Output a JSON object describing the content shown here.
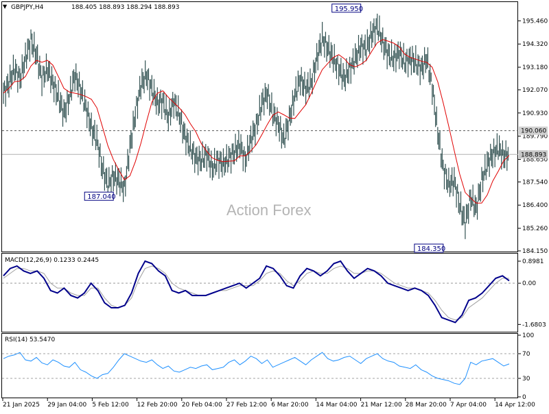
{
  "chart_data": [
    {
      "type": "candlestick",
      "title": "GBPJPY,H4",
      "ohlc_label": "188.405 188.893 188.294 188.893",
      "watermark": "Action Forex",
      "y_ticks": [
        "195.460",
        "194.320",
        "193.180",
        "192.070",
        "190.930",
        "189.790",
        "188.650",
        "187.540",
        "186.400",
        "185.260",
        "184.150"
      ],
      "y_tick_values": [
        195.46,
        194.32,
        193.18,
        192.07,
        190.93,
        189.79,
        188.65,
        187.54,
        186.4,
        185.26,
        184.15
      ],
      "ylim": [
        184.15,
        196.35
      ],
      "current_price": "188.893",
      "current_price_value": 188.893,
      "level_line": "190.060",
      "level_line_value": 190.06,
      "annotations": [
        {
          "text": "195.950",
          "value": 195.95
        },
        {
          "text": "187.040",
          "value": 187.04
        },
        {
          "text": "184.350",
          "value": 184.35
        }
      ],
      "x_ticks": [
        "21 Jan 2025",
        "29 Jan 04:00",
        "5 Feb 12:00",
        "12 Feb 20:00",
        "20 Feb 04:00",
        "27 Feb 12:00",
        "6 Mar 20:00",
        "14 Mar 04:00",
        "21 Mar 12:00",
        "28 Mar 20:00",
        "7 Apr 04:00",
        "14 Apr 12:00"
      ],
      "colors": {
        "bars": "#2f4f4f",
        "moving_average": "#e00000",
        "level_line": "#555555"
      },
      "close_series": [
        191.9,
        192.4,
        193.1,
        192.6,
        193.6,
        194.5,
        193.8,
        192.6,
        193.1,
        192.4,
        191.7,
        190.9,
        191.7,
        192.8,
        192.1,
        191.2,
        190.2,
        189.6,
        188.2,
        187.4,
        187.8,
        187.6,
        187.2,
        189.2,
        190.9,
        192.3,
        192.8,
        192.1,
        191.4,
        191.5,
        190.7,
        191.5,
        190.8,
        189.8,
        189.2,
        188.7,
        188.6,
        188.9,
        188.2,
        188.6,
        188.4,
        188.7,
        189.0,
        189.4,
        188.6,
        189.6,
        190.3,
        191.4,
        191.9,
        190.9,
        190.4,
        189.6,
        190.6,
        191.8,
        192.6,
        192.1,
        192.4,
        193.6,
        194.6,
        194.1,
        193.6,
        193.1,
        192.6,
        193.1,
        193.6,
        194.2,
        194.1,
        194.8,
        195.2,
        194.4,
        193.8,
        193.6,
        193.9,
        193.4,
        193.6,
        193.4,
        193.1,
        193.6,
        192.2,
        190.0,
        188.2,
        187.4,
        187.6,
        186.4,
        185.5,
        186.8,
        186.2,
        187.6,
        188.4,
        188.9,
        189.2,
        188.8,
        188.9
      ]
    },
    {
      "type": "line",
      "title": "MACD(12,26,9) 0.1233 0.2445",
      "y_ticks": [
        "0.8981",
        "0.00",
        "-1.6803"
      ],
      "y_tick_values": [
        0.8981,
        0,
        -1.6803
      ],
      "ylim": [
        -1.95,
        1.15
      ],
      "colors": {
        "macd": "#00008b",
        "signal": "#a0a0a0"
      },
      "macd": [
        0.3,
        0.6,
        0.7,
        0.5,
        0.4,
        0.5,
        0.2,
        -0.3,
        -0.4,
        -0.2,
        -0.5,
        -0.6,
        -0.4,
        0.0,
        -0.3,
        -0.8,
        -1.0,
        -1.0,
        -0.9,
        -0.4,
        0.4,
        0.9,
        0.8,
        0.5,
        0.3,
        -0.3,
        -0.4,
        -0.3,
        -0.5,
        -0.5,
        -0.5,
        -0.4,
        -0.3,
        -0.2,
        -0.1,
        0.0,
        -0.2,
        0.0,
        0.2,
        0.7,
        0.6,
        0.3,
        -0.1,
        -0.2,
        0.3,
        0.6,
        0.5,
        0.3,
        0.5,
        0.8,
        0.9,
        0.5,
        0.2,
        0.4,
        0.6,
        0.5,
        0.3,
        0.0,
        -0.1,
        -0.2,
        -0.3,
        -0.2,
        -0.3,
        -0.5,
        -0.9,
        -1.4,
        -1.5,
        -1.6,
        -1.3,
        -0.7,
        -0.6,
        -0.4,
        -0.1,
        0.2,
        0.3,
        0.1
      ],
      "signal": [
        0.2,
        0.4,
        0.6,
        0.6,
        0.5,
        0.5,
        0.4,
        0.0,
        -0.2,
        -0.2,
        -0.4,
        -0.5,
        -0.5,
        -0.2,
        -0.2,
        -0.6,
        -0.9,
        -1.0,
        -0.9,
        -0.6,
        0.1,
        0.6,
        0.7,
        0.6,
        0.4,
        0.0,
        -0.2,
        -0.3,
        -0.4,
        -0.5,
        -0.5,
        -0.4,
        -0.3,
        -0.3,
        -0.2,
        -0.1,
        -0.1,
        -0.1,
        0.1,
        0.4,
        0.5,
        0.4,
        0.1,
        -0.1,
        0.1,
        0.4,
        0.5,
        0.4,
        0.4,
        0.6,
        0.7,
        0.6,
        0.4,
        0.4,
        0.5,
        0.5,
        0.4,
        0.2,
        0.0,
        -0.1,
        -0.2,
        -0.2,
        -0.3,
        -0.4,
        -0.7,
        -1.1,
        -1.4,
        -1.5,
        -1.4,
        -1.0,
        -0.8,
        -0.6,
        -0.3,
        0.0,
        0.2,
        0.2
      ]
    },
    {
      "type": "line",
      "title": "RSI(14) 53.5470",
      "y_ticks": [
        "100",
        "70",
        "30",
        "0"
      ],
      "y_tick_values": [
        100,
        70,
        30,
        0
      ],
      "ylim": [
        0,
        100
      ],
      "reference_levels": [
        70,
        30
      ],
      "colors": {
        "rsi": "#1e90ff",
        "reference": "#a0a0a0"
      },
      "rsi": [
        62,
        66,
        68,
        72,
        60,
        58,
        64,
        55,
        52,
        60,
        56,
        50,
        48,
        56,
        44,
        40,
        34,
        30,
        36,
        38,
        48,
        60,
        70,
        66,
        62,
        58,
        56,
        60,
        52,
        46,
        50,
        42,
        40,
        44,
        48,
        46,
        50,
        52,
        44,
        46,
        48,
        56,
        60,
        52,
        58,
        66,
        62,
        54,
        60,
        48,
        52,
        56,
        60,
        64,
        58,
        52,
        60,
        66,
        72,
        62,
        58,
        60,
        64,
        66,
        60,
        54,
        62,
        66,
        70,
        62,
        58,
        56,
        50,
        48,
        46,
        52,
        44,
        40,
        34,
        30,
        28,
        26,
        22,
        20,
        30,
        56,
        52,
        58,
        60,
        62,
        56,
        50,
        53.5
      ]
    }
  ]
}
